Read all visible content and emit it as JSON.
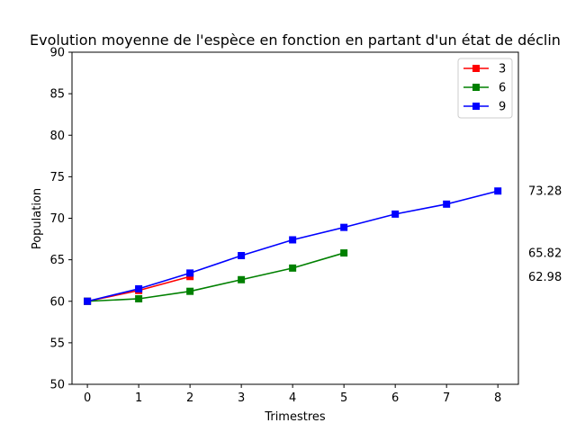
{
  "chart_data": {
    "type": "line",
    "title": "Evolution moyenne de l'espèce en fonction en partant d'un état de déclin",
    "xlabel": "Trimestres",
    "ylabel": "Population",
    "xlim": [
      -0.3,
      8.4
    ],
    "ylim": [
      50,
      90
    ],
    "xticks": [
      0,
      1,
      2,
      3,
      4,
      5,
      6,
      7,
      8
    ],
    "yticks": [
      50,
      55,
      60,
      65,
      70,
      75,
      80,
      85,
      90
    ],
    "grid": false,
    "legend_position": "top-right",
    "series": [
      {
        "name": "3",
        "color": "#ff0000",
        "marker": "square",
        "x": [
          0,
          1,
          2
        ],
        "values": [
          60.0,
          61.3,
          62.98
        ]
      },
      {
        "name": "6",
        "color": "#008000",
        "marker": "square",
        "x": [
          0,
          1,
          2,
          3,
          4,
          5
        ],
        "values": [
          60.0,
          60.3,
          61.2,
          62.6,
          64.0,
          65.82
        ]
      },
      {
        "name": "9",
        "color": "#0000ff",
        "marker": "square",
        "x": [
          0,
          1,
          2,
          3,
          4,
          5,
          6,
          7,
          8
        ],
        "values": [
          60.0,
          61.5,
          63.4,
          65.5,
          67.4,
          68.9,
          70.5,
          71.7,
          73.28
        ]
      }
    ],
    "end_labels": [
      {
        "text": "73.28",
        "value": 73.28,
        "color": "#000000"
      },
      {
        "text": "65.82",
        "value": 65.82,
        "color": "#000000"
      },
      {
        "text": "62.98",
        "value": 62.98,
        "color": "#000000"
      }
    ]
  }
}
